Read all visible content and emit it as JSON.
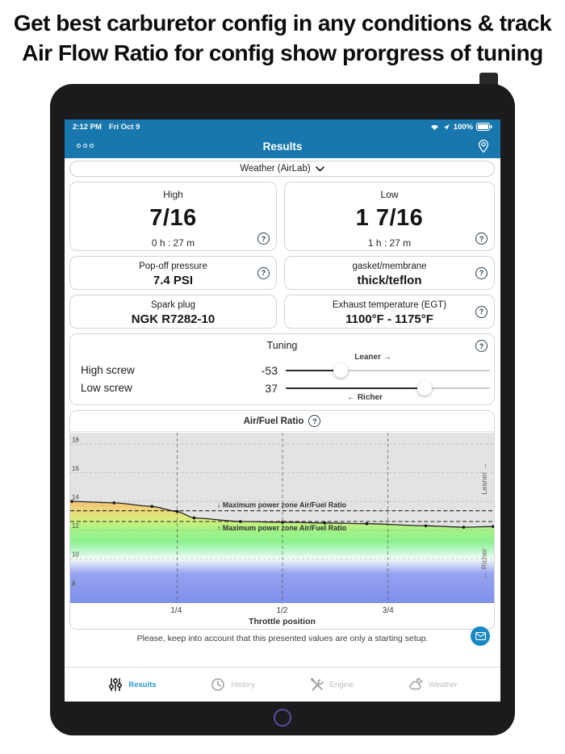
{
  "banner": {
    "line1": "Get best carburetor config in any conditions & track",
    "line2": "Air Flow Ratio for config show prorgress of tuning"
  },
  "status_bar": {
    "time": "2:12 PM",
    "date": "Fri Oct 9",
    "battery": "100%"
  },
  "nav": {
    "title": "Results"
  },
  "icons": {
    "help": "?"
  },
  "weather_selector": {
    "label": "Weather (AirLab)"
  },
  "cards": {
    "high": {
      "title": "High",
      "value": "7/16",
      "subtitle": "0 h : 27 m"
    },
    "low": {
      "title": "Low",
      "value": "1 7/16",
      "subtitle": "1 h : 27 m"
    },
    "popoff": {
      "title": "Pop-off pressure",
      "value": "7.4 PSI"
    },
    "gasket": {
      "title": "gasket/membrane",
      "value": "thick/teflon"
    },
    "spark": {
      "title": "Spark plug",
      "value": "NGK R7282-10"
    },
    "egt": {
      "title": "Exhaust temperature (EGT)",
      "value": "1100°F - 1175°F"
    }
  },
  "tuning": {
    "title": "Tuning",
    "leaner_label": "Leaner →",
    "richer_label": "← Richer",
    "rows": [
      {
        "label": "High screw",
        "value": "-53",
        "percent": 27
      },
      {
        "label": "Low screw",
        "value": "37",
        "percent": 68
      }
    ]
  },
  "chart_data": {
    "type": "line",
    "title": "Air/Fuel Ratio",
    "xlabel": "Throttle position",
    "x_ticks": [
      "1/4",
      "1/2",
      "3/4"
    ],
    "y_ticks": [
      18,
      16,
      14,
      12,
      10,
      8
    ],
    "xlim": [
      0,
      1
    ],
    "ylim": [
      6.9,
      18.8
    ],
    "grid": true,
    "max_power_zone": [
      12.6,
      13.35
    ],
    "annotations": [
      "↓ Maximum power zone Air/Fuel Ratio",
      "↑ Maximum power zone Air/Fuel Ratio"
    ],
    "side_labels": {
      "top": "Leaner →",
      "bottom": "← Richer"
    },
    "series": [
      {
        "name": "Air/Fuel Ratio",
        "x": [
          0,
          0.1,
          0.19,
          0.25,
          0.29,
          0.4,
          0.5,
          0.6,
          0.7,
          0.84,
          0.93,
          1.0
        ],
        "y": [
          14.0,
          13.9,
          13.65,
          13.3,
          12.85,
          12.6,
          12.55,
          12.5,
          12.45,
          12.3,
          12.2,
          12.25
        ]
      }
    ],
    "gradient_colors": [
      "#f3ab5e",
      "#f6c276",
      "#eed67c",
      "#d9ef7d",
      "#a8f284",
      "#8bf18f",
      "#c2f7cf",
      "#f4fef6",
      "#d3daf6",
      "#96a4ef",
      "#7e8eec"
    ]
  },
  "footer": {
    "note": "Please, keep into account that this presented values are only a starting setup."
  },
  "tab_bar": {
    "tabs": [
      {
        "label": "Results",
        "active": true
      },
      {
        "label": "History",
        "active": false
      },
      {
        "label": "Engine",
        "active": false
      },
      {
        "label": "Weather",
        "active": false
      }
    ]
  }
}
